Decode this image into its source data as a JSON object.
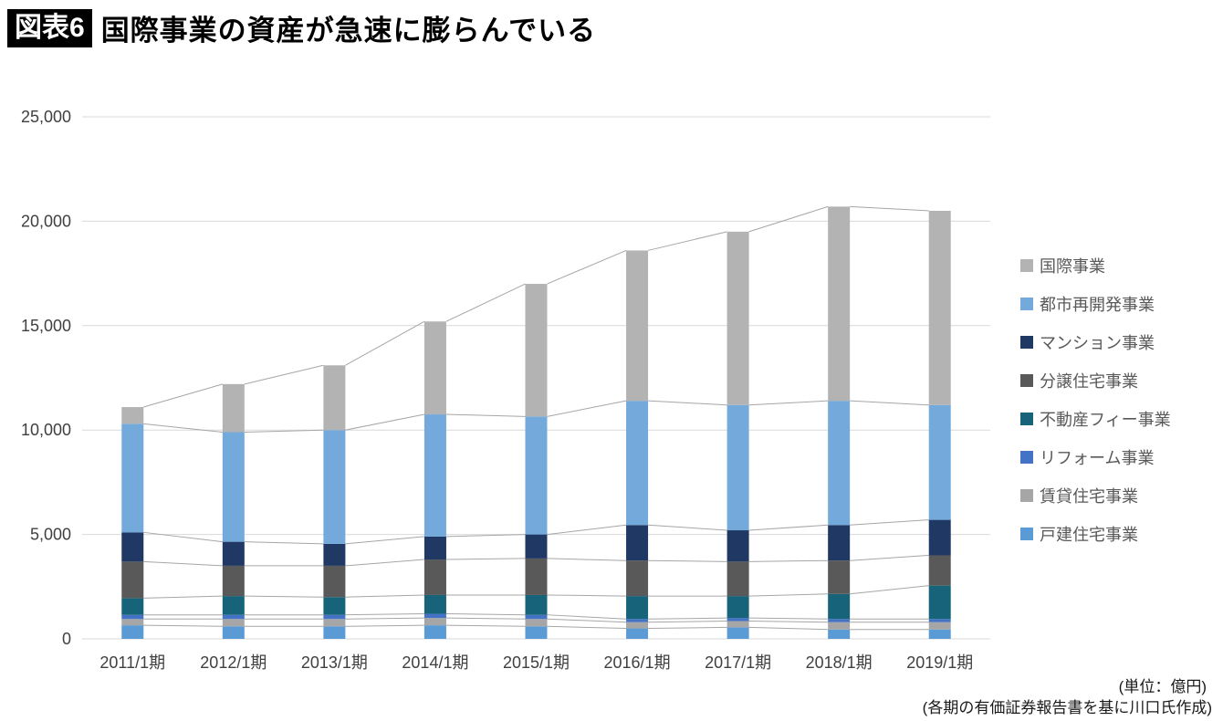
{
  "header": {
    "badge": "図表6",
    "title": "国際事業の資産が急速に膨らんでいる"
  },
  "footer": {
    "unit_note": "(単位：億円)",
    "source_note": "(各期の有価証券報告書を基に川口氏作成)"
  },
  "chart_data": {
    "type": "bar",
    "stacked": true,
    "title": "国際事業の資産が急速に膨らんでいる",
    "xlabel": "",
    "ylabel": "",
    "ylim": [
      0,
      25000
    ],
    "ytick_interval": 5000,
    "grid": true,
    "legend_position": "right",
    "connector_lines": true,
    "categories": [
      "2011/1期",
      "2012/1期",
      "2013/1期",
      "2014/1期",
      "2015/1期",
      "2016/1期",
      "2017/1期",
      "2018/1期",
      "2019/1期"
    ],
    "series": [
      {
        "name": "戸建住宅事業",
        "color": "#5b9bd5",
        "values": [
          650,
          600,
          600,
          650,
          600,
          500,
          550,
          450,
          450
        ]
      },
      {
        "name": "賃貸住宅事業",
        "color": "#a6a6a6",
        "values": [
          300,
          350,
          350,
          350,
          350,
          300,
          300,
          350,
          350
        ]
      },
      {
        "name": "リフォーム事業",
        "color": "#4472c4",
        "values": [
          200,
          200,
          200,
          200,
          200,
          150,
          150,
          150,
          150
        ]
      },
      {
        "name": "不動産フィー事業",
        "color": "#17647a",
        "values": [
          800,
          900,
          850,
          900,
          950,
          1100,
          1050,
          1200,
          1600
        ]
      },
      {
        "name": "分譲住宅事業",
        "color": "#595959",
        "values": [
          1750,
          1450,
          1500,
          1700,
          1750,
          1700,
          1650,
          1600,
          1450
        ]
      },
      {
        "name": "マンション事業",
        "color": "#1f3864",
        "values": [
          1400,
          1150,
          1050,
          1100,
          1150,
          1700,
          1500,
          1700,
          1700
        ]
      },
      {
        "name": "都市再開発事業",
        "color": "#74aadb",
        "values": [
          5200,
          5250,
          5450,
          5850,
          5650,
          5950,
          6000,
          5950,
          5500
        ]
      },
      {
        "name": "国際事業",
        "color": "#b3b3b3",
        "values": [
          800,
          2300,
          3100,
          4450,
          6350,
          7200,
          8300,
          9300,
          9300
        ]
      }
    ],
    "totals": [
      11100,
      12200,
      13100,
      15200,
      17000,
      18600,
      19500,
      20700,
      20500
    ]
  }
}
